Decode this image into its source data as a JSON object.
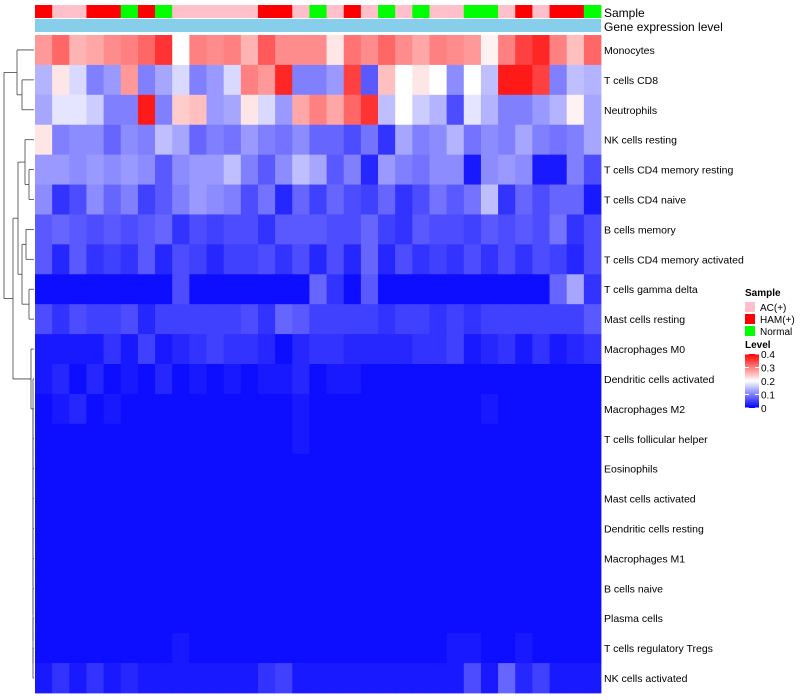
{
  "chart_data": {
    "type": "heatmap",
    "annotation_labels": {
      "sample": "Sample",
      "gene": "Gene expression level"
    },
    "rows": [
      "Monocytes",
      "T cells CD8",
      "Neutrophils",
      "NK cells resting",
      "T cells CD4 memory resting",
      "T cells CD4 naive",
      "B cells memory",
      "T cells CD4 memory activated",
      "T cells gamma delta",
      "Mast cells resting",
      "Macrophages M0",
      "Dendritic cells activated",
      "Macrophages M2",
      "T cells follicular helper",
      "Eosinophils",
      "Mast cells activated",
      "Dendritic cells resting",
      "Macrophages M1",
      "B cells naive",
      "Plasma cells",
      "T cells regulatory  Tregs",
      "NK cells activated"
    ],
    "sample_groups": [
      "HAM(+)",
      "AC(+)",
      "AC(+)",
      "HAM(+)",
      "HAM(+)",
      "Normal",
      "HAM(+)",
      "Normal",
      "AC(+)",
      "AC(+)",
      "AC(+)",
      "AC(+)",
      "AC(+)",
      "HAM(+)",
      "HAM(+)",
      "AC(+)",
      "Normal",
      "AC(+)",
      "HAM(+)",
      "AC(+)",
      "Normal",
      "AC(+)",
      "Normal",
      "AC(+)",
      "AC(+)",
      "Normal",
      "Normal",
      "AC(+)",
      "HAM(+)",
      "AC(+)",
      "HAM(+)",
      "HAM(+)",
      "Normal"
    ],
    "group_colors": {
      "AC(+)": "#ffc0cb",
      "HAM(+)": "#ff0000",
      "Normal": "#00ff00"
    },
    "gene_bar_color": "#87ceeb",
    "values": [
      [
        0.28,
        0.32,
        0.26,
        0.27,
        0.29,
        0.3,
        0.32,
        0.36,
        0.2,
        0.3,
        0.29,
        0.3,
        0.26,
        0.33,
        0.29,
        0.29,
        0.29,
        0.22,
        0.31,
        0.29,
        0.32,
        0.29,
        0.27,
        0.3,
        0.29,
        0.28,
        0.21,
        0.3,
        0.35,
        0.37,
        0.3,
        0.25,
        0.32
      ],
      [
        0.14,
        0.22,
        0.17,
        0.1,
        0.12,
        0.28,
        0.1,
        0.13,
        0.17,
        0.1,
        0.12,
        0.17,
        0.3,
        0.28,
        0.37,
        0.1,
        0.1,
        0.12,
        0.35,
        0.07,
        0.25,
        0.2,
        0.22,
        0.2,
        0.11,
        0.2,
        0.15,
        0.38,
        0.38,
        0.35,
        0.1,
        0.15,
        0.14
      ],
      [
        0.13,
        0.18,
        0.18,
        0.16,
        0.1,
        0.1,
        0.38,
        0.1,
        0.24,
        0.25,
        0.12,
        0.13,
        0.22,
        0.17,
        0.12,
        0.27,
        0.3,
        0.27,
        0.32,
        0.36,
        0.15,
        0.2,
        0.16,
        0.14,
        0.06,
        0.18,
        0.14,
        0.1,
        0.1,
        0.12,
        0.14,
        0.21,
        0.13
      ],
      [
        0.22,
        0.1,
        0.11,
        0.11,
        0.08,
        0.11,
        0.1,
        0.15,
        0.13,
        0.08,
        0.1,
        0.09,
        0.12,
        0.1,
        0.09,
        0.11,
        0.08,
        0.08,
        0.06,
        0.09,
        0.04,
        0.13,
        0.1,
        0.11,
        0.14,
        0.09,
        0.11,
        0.1,
        0.13,
        0.1,
        0.09,
        0.1,
        0.13
      ],
      [
        0.12,
        0.12,
        0.11,
        0.12,
        0.11,
        0.12,
        0.11,
        0.07,
        0.11,
        0.12,
        0.12,
        0.15,
        0.1,
        0.07,
        0.11,
        0.15,
        0.13,
        0.07,
        0.1,
        0.03,
        0.12,
        0.1,
        0.09,
        0.11,
        0.11,
        0.02,
        0.11,
        0.12,
        0.11,
        0.02,
        0.02,
        0.1,
        0.06
      ],
      [
        0.11,
        0.04,
        0.06,
        0.11,
        0.08,
        0.1,
        0.05,
        0.07,
        0.1,
        0.12,
        0.11,
        0.1,
        0.06,
        0.09,
        0.03,
        0.08,
        0.05,
        0.08,
        0.06,
        0.05,
        0.08,
        0.04,
        0.06,
        0.09,
        0.07,
        0.09,
        0.15,
        0.04,
        0.08,
        0.06,
        0.08,
        0.08,
        0.02
      ],
      [
        0.07,
        0.08,
        0.07,
        0.06,
        0.07,
        0.06,
        0.07,
        0.08,
        0.04,
        0.06,
        0.05,
        0.06,
        0.06,
        0.04,
        0.07,
        0.07,
        0.07,
        0.06,
        0.06,
        0.08,
        0.05,
        0.04,
        0.07,
        0.06,
        0.06,
        0.05,
        0.07,
        0.06,
        0.07,
        0.06,
        0.09,
        0.04,
        0.06
      ],
      [
        0.07,
        0.03,
        0.07,
        0.04,
        0.05,
        0.04,
        0.07,
        0.03,
        0.06,
        0.05,
        0.03,
        0.05,
        0.05,
        0.06,
        0.04,
        0.06,
        0.03,
        0.06,
        0.03,
        0.08,
        0.03,
        0.06,
        0.04,
        0.05,
        0.04,
        0.06,
        0.04,
        0.06,
        0.04,
        0.06,
        0.05,
        0.03,
        0.06
      ],
      [
        0.01,
        0.01,
        0.01,
        0.01,
        0.01,
        0.01,
        0.01,
        0.01,
        0.06,
        0.01,
        0.01,
        0.01,
        0.01,
        0.01,
        0.01,
        0.01,
        0.08,
        0.04,
        0.01,
        0.07,
        0.01,
        0.01,
        0.01,
        0.01,
        0.01,
        0.01,
        0.01,
        0.01,
        0.01,
        0.01,
        0.08,
        0.13,
        0.04
      ],
      [
        0.06,
        0.04,
        0.06,
        0.05,
        0.05,
        0.06,
        0.03,
        0.05,
        0.05,
        0.05,
        0.05,
        0.05,
        0.06,
        0.04,
        0.08,
        0.07,
        0.05,
        0.05,
        0.05,
        0.05,
        0.04,
        0.05,
        0.05,
        0.04,
        0.05,
        0.04,
        0.05,
        0.05,
        0.05,
        0.05,
        0.05,
        0.05,
        0.07
      ],
      [
        0.02,
        0.02,
        0.02,
        0.02,
        0.04,
        0.02,
        0.05,
        0.02,
        0.03,
        0.04,
        0.05,
        0.04,
        0.04,
        0.03,
        0.01,
        0.03,
        0.04,
        0.04,
        0.03,
        0.03,
        0.03,
        0.03,
        0.04,
        0.04,
        0.05,
        0.02,
        0.03,
        0.04,
        0.02,
        0.04,
        0.02,
        0.03,
        0.04
      ],
      [
        0.02,
        0.03,
        0.01,
        0.03,
        0.01,
        0.02,
        0.01,
        0.03,
        0.01,
        0.02,
        0.01,
        0.02,
        0.01,
        0.02,
        0.02,
        0.03,
        0.01,
        0.02,
        0.02,
        0.01,
        0.01,
        0.01,
        0.01,
        0.01,
        0.01,
        0.01,
        0.01,
        0.01,
        0.01,
        0.01,
        0.01,
        0.01,
        0.01
      ],
      [
        0.01,
        0.02,
        0.03,
        0.01,
        0.02,
        0.01,
        0.01,
        0.01,
        0.01,
        0.01,
        0.01,
        0.01,
        0.01,
        0.01,
        0.01,
        0.02,
        0.01,
        0.01,
        0.01,
        0.01,
        0.01,
        0.01,
        0.01,
        0.01,
        0.01,
        0.01,
        0.02,
        0.01,
        0.01,
        0.01,
        0.01,
        0.01,
        0.01
      ],
      [
        0.01,
        0.01,
        0.01,
        0.01,
        0.01,
        0.01,
        0.01,
        0.01,
        0.01,
        0.01,
        0.01,
        0.01,
        0.01,
        0.01,
        0.01,
        0.02,
        0.01,
        0.01,
        0.01,
        0.01,
        0.01,
        0.01,
        0.01,
        0.01,
        0.01,
        0.01,
        0.01,
        0.01,
        0.01,
        0.01,
        0.01,
        0.01,
        0.01
      ],
      [
        0.01,
        0.01,
        0.01,
        0.01,
        0.01,
        0.01,
        0.01,
        0.01,
        0.01,
        0.01,
        0.01,
        0.01,
        0.01,
        0.01,
        0.01,
        0.01,
        0.01,
        0.01,
        0.01,
        0.01,
        0.01,
        0.01,
        0.01,
        0.01,
        0.01,
        0.01,
        0.01,
        0.01,
        0.01,
        0.01,
        0.01,
        0.01,
        0.01
      ],
      [
        0.01,
        0.01,
        0.01,
        0.01,
        0.01,
        0.01,
        0.01,
        0.01,
        0.01,
        0.01,
        0.01,
        0.01,
        0.01,
        0.01,
        0.01,
        0.01,
        0.01,
        0.01,
        0.01,
        0.01,
        0.01,
        0.01,
        0.01,
        0.01,
        0.01,
        0.01,
        0.01,
        0.01,
        0.01,
        0.01,
        0.01,
        0.01,
        0.01
      ],
      [
        0.01,
        0.01,
        0.01,
        0.01,
        0.01,
        0.01,
        0.01,
        0.01,
        0.01,
        0.01,
        0.01,
        0.01,
        0.01,
        0.01,
        0.01,
        0.01,
        0.01,
        0.01,
        0.01,
        0.01,
        0.01,
        0.01,
        0.01,
        0.01,
        0.01,
        0.01,
        0.01,
        0.01,
        0.01,
        0.01,
        0.01,
        0.01,
        0.01
      ],
      [
        0.01,
        0.01,
        0.01,
        0.01,
        0.01,
        0.01,
        0.01,
        0.01,
        0.01,
        0.01,
        0.01,
        0.01,
        0.01,
        0.01,
        0.01,
        0.01,
        0.01,
        0.01,
        0.01,
        0.01,
        0.01,
        0.01,
        0.01,
        0.01,
        0.01,
        0.01,
        0.01,
        0.01,
        0.01,
        0.01,
        0.01,
        0.01,
        0.01
      ],
      [
        0.01,
        0.01,
        0.01,
        0.01,
        0.01,
        0.01,
        0.01,
        0.01,
        0.01,
        0.01,
        0.01,
        0.01,
        0.01,
        0.01,
        0.01,
        0.01,
        0.01,
        0.01,
        0.01,
        0.01,
        0.01,
        0.01,
        0.01,
        0.01,
        0.01,
        0.01,
        0.01,
        0.01,
        0.01,
        0.01,
        0.01,
        0.01,
        0.01
      ],
      [
        0.01,
        0.01,
        0.01,
        0.01,
        0.01,
        0.01,
        0.01,
        0.01,
        0.01,
        0.01,
        0.01,
        0.01,
        0.01,
        0.01,
        0.01,
        0.01,
        0.01,
        0.01,
        0.01,
        0.01,
        0.01,
        0.01,
        0.01,
        0.01,
        0.01,
        0.01,
        0.01,
        0.01,
        0.01,
        0.01,
        0.01,
        0.01,
        0.01
      ],
      [
        0.01,
        0.01,
        0.01,
        0.01,
        0.01,
        0.01,
        0.01,
        0.01,
        0.02,
        0.01,
        0.01,
        0.01,
        0.01,
        0.01,
        0.01,
        0.01,
        0.01,
        0.01,
        0.01,
        0.01,
        0.01,
        0.01,
        0.01,
        0.01,
        0.02,
        0.02,
        0.01,
        0.01,
        0.02,
        0.01,
        0.01,
        0.01,
        0.01
      ],
      [
        0.02,
        0.04,
        0.02,
        0.04,
        0.02,
        0.03,
        0.02,
        0.02,
        0.02,
        0.02,
        0.02,
        0.02,
        0.02,
        0.04,
        0.05,
        0.02,
        0.02,
        0.02,
        0.02,
        0.02,
        0.02,
        0.02,
        0.02,
        0.02,
        0.02,
        0.06,
        0.02,
        0.08,
        0.03,
        0.05,
        0.02,
        0.02,
        0.02
      ]
    ],
    "color_scale": {
      "low": "#0000ff",
      "mid": "#ffffff",
      "high": "#ff0000",
      "min": 0,
      "mid_value": 0.2,
      "max": 0.4
    },
    "legend": {
      "sample_title": "Sample",
      "sample_entries": [
        "AC(+)",
        "HAM(+)",
        "Normal"
      ],
      "level_title": "Level",
      "level_ticks": [
        "0.4",
        "0.3",
        "0.2",
        "0.1",
        "0"
      ],
      "level_tick_values": [
        0.4,
        0.3,
        0.2,
        0.1,
        0
      ],
      "position": "right"
    },
    "dendrogram": "rows"
  }
}
